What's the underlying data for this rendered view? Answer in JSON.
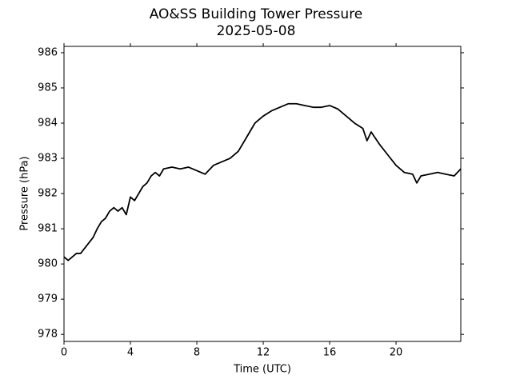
{
  "chart_data": {
    "type": "line",
    "title": "AO&SS Building Tower Pressure",
    "subtitle": "2025-05-08",
    "x_label": "Time (UTC)",
    "y_label": "Pressure (hPa)",
    "x": [
      0,
      0.25,
      0.5,
      0.75,
      1,
      1.25,
      1.5,
      1.75,
      2,
      2.25,
      2.5,
      2.75,
      3,
      3.25,
      3.5,
      3.75,
      4,
      4.25,
      4.5,
      4.75,
      5,
      5.25,
      5.5,
      5.75,
      6,
      6.5,
      7,
      7.5,
      8,
      8.5,
      9,
      9.5,
      10,
      10.5,
      11,
      11.5,
      12,
      12.5,
      13,
      13.5,
      14,
      14.5,
      15,
      15.5,
      16,
      16.5,
      17,
      17.5,
      18,
      18.25,
      18.5,
      19,
      19.5,
      20,
      20.5,
      21,
      21.25,
      21.5,
      22,
      22.5,
      23,
      23.5,
      23.9
    ],
    "series": [
      {
        "name": "Pressure",
        "color": "#000000",
        "values": [
          980.2,
          980.1,
          980.2,
          980.3,
          980.3,
          980.45,
          980.6,
          980.75,
          981.0,
          981.2,
          981.3,
          981.5,
          981.6,
          981.5,
          981.6,
          981.4,
          981.9,
          981.8,
          982.0,
          982.2,
          982.3,
          982.5,
          982.6,
          982.5,
          982.7,
          982.75,
          982.7,
          982.75,
          982.65,
          982.55,
          982.8,
          982.9,
          983.0,
          983.2,
          983.6,
          984.0,
          984.2,
          984.35,
          984.45,
          984.55,
          984.55,
          984.5,
          984.45,
          984.45,
          984.5,
          984.4,
          984.2,
          984.0,
          983.85,
          983.5,
          983.75,
          983.4,
          983.1,
          982.8,
          982.6,
          982.55,
          982.3,
          982.5,
          982.55,
          982.6,
          982.55,
          982.5,
          982.7
        ]
      }
    ],
    "xlim": [
      0,
      23.9
    ],
    "ylim": [
      977.8,
      986.18
    ],
    "xticks": [
      0,
      4,
      8,
      12,
      16,
      20
    ],
    "yticks": [
      978,
      979,
      980,
      981,
      982,
      983,
      984,
      985,
      986
    ]
  }
}
